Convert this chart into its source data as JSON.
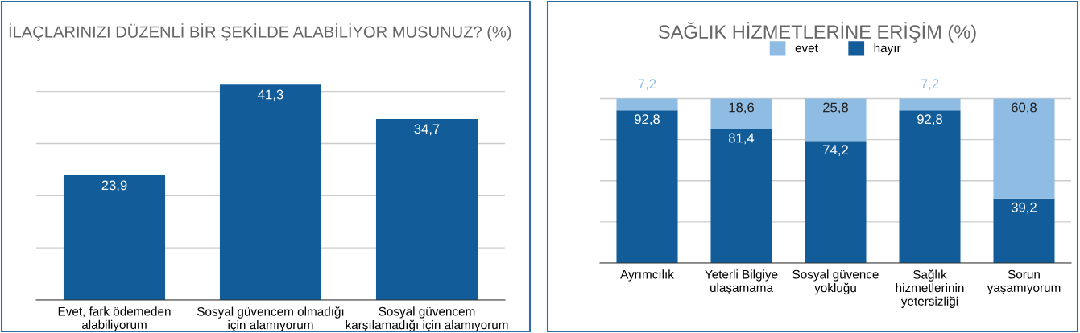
{
  "chart_data": [
    {
      "type": "bar",
      "title": "İLAÇLARINIZI DÜZENLİ BİR ŞEKİLDE ALABİLİYOR MUSUNUZ? (%)",
      "categories": [
        "Evet, fark ödemeden\nalabiliyorum",
        "Sosyal güvencem olmadığı\niçin alamıyorum",
        "Sosyal güvencem\nkarşılamadığı için alamıyorum"
      ],
      "values": [
        23.9,
        41.3,
        34.7
      ],
      "value_labels": [
        "23,9",
        "41,3",
        "34,7"
      ],
      "color": "#115c99",
      "tick_labels": "x",
      "grid": "y",
      "legend": false
    },
    {
      "type": "bar",
      "title": "SAĞLIK HİZMETLERİNE ERİŞİM (%)",
      "stacked": true,
      "categories": [
        "Ayrımcılık",
        "Yeterli Bilgiye\nulaşamama",
        "Sosyal güvence\nyokluğu",
        "Sağlık\nhizmetlerinin\nyetersizliği",
        "Sorun\nyaşamıyorum"
      ],
      "series": [
        {
          "name": "hayır",
          "color": "#115c99",
          "values": [
            92.8,
            81.4,
            74.2,
            92.8,
            39.2
          ],
          "value_labels": [
            "92,8",
            "81,4",
            "74,2",
            "92,8",
            "39,2"
          ]
        },
        {
          "name": "evet",
          "color": "#8fbce3",
          "values": [
            7.2,
            18.6,
            25.8,
            7.2,
            60.8
          ],
          "value_labels": [
            "7,2",
            "18,6",
            "25,8",
            "7,2",
            "60,8"
          ]
        }
      ],
      "tick_labels": "x",
      "grid": "y",
      "legend": "top"
    }
  ]
}
